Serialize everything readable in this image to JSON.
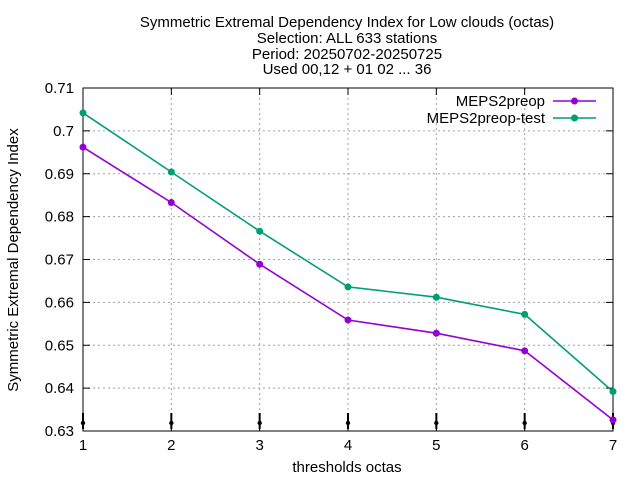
{
  "chart_data": {
    "type": "line",
    "title_lines": [
      "Symmetric Extremal Dependency Index  for Low clouds (octas)",
      "Selection: ALL    633 stations",
      "Period: 20250702-20250725",
      "Used 00,12 + 01 02 ... 36"
    ],
    "xlabel": "thresholds octas",
    "ylabel": "Symmetric Extremal Dependency Index",
    "xlim": [
      1,
      7
    ],
    "ylim": [
      0.63,
      0.71
    ],
    "x_ticks": [
      "1",
      "2",
      "3",
      "4",
      "5",
      "6",
      "7"
    ],
    "y_ticks": [
      "0.63",
      "0.64",
      "0.65",
      "0.66",
      "0.67",
      "0.68",
      "0.69",
      "0.7",
      "0.71"
    ],
    "grid": true,
    "legend_position": "top-right",
    "x": [
      1,
      2,
      3,
      4,
      5,
      6,
      7
    ],
    "series": [
      {
        "name": "MEPS2preop",
        "color": "#9400d3",
        "values": [
          0.6962,
          0.6833,
          0.6689,
          0.6559,
          0.6528,
          0.6487,
          0.6326
        ]
      },
      {
        "name": "MEPS2preop-test",
        "color": "#009e73",
        "values": [
          0.7042,
          0.6904,
          0.6766,
          0.6636,
          0.6612,
          0.6572,
          0.6392
        ]
      }
    ]
  }
}
